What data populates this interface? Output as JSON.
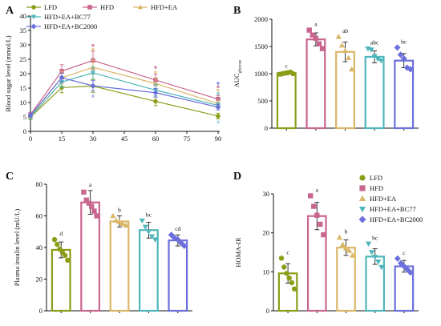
{
  "colors": {
    "LFD": "#8c9d18",
    "HFD": "#c9668f",
    "HFD+EA": "#d9b767",
    "HFD+EA+BC77": "#4fb6bb",
    "HFD+EA+BC2000": "#6b6fdc"
  },
  "chart_data": [
    {
      "panel": "A",
      "type": "line",
      "ylabel": "Blood sugar level (mmol/L)",
      "xlabel": "",
      "x": [
        0,
        15,
        30,
        60,
        90
      ],
      "xticks": [
        "0",
        "15",
        "30",
        "45",
        "60",
        "75",
        "90"
      ],
      "yticks": [
        "0",
        "5",
        "10",
        "15",
        "20",
        "25",
        "30",
        "35",
        "40"
      ],
      "xlim": [
        0,
        90
      ],
      "ylim": [
        0,
        40
      ],
      "legend_position": "top",
      "series": [
        {
          "name": "LFD",
          "marker": "circle",
          "values": [
            4.9,
            15.2,
            15.7,
            10.4,
            5.3
          ],
          "err": [
            0.8,
            1.8,
            2.2,
            1.5,
            1.0
          ]
        },
        {
          "name": "HFD",
          "marker": "square",
          "values": [
            5.8,
            20.9,
            24.6,
            17.8,
            11.2
          ],
          "err": [
            0.8,
            2.2,
            3.2,
            2.0,
            1.2
          ]
        },
        {
          "name": "HFD+EA",
          "marker": "triangle-up",
          "values": [
            5.3,
            18.6,
            22.2,
            16.6,
            9.6
          ],
          "err": [
            0.8,
            2.2,
            2.5,
            2.0,
            1.0
          ]
        },
        {
          "name": "HFD+EA+BC77",
          "marker": "triangle-down",
          "values": [
            5.0,
            17.1,
            20.3,
            14.3,
            9.0
          ],
          "err": [
            0.8,
            2.0,
            2.0,
            2.0,
            1.0
          ]
        },
        {
          "name": "HFD+EA+BC2000",
          "marker": "diamond",
          "values": [
            5.6,
            18.6,
            15.8,
            13.4,
            8.4
          ],
          "err": [
            0.7,
            1.5,
            1.8,
            1.5,
            1.0
          ]
        }
      ],
      "annotations": [
        {
          "x": 30,
          "y": 11.5,
          "text": "#",
          "series": "HFD+EA+BC2000"
        },
        {
          "x": 90,
          "y": 2.5,
          "text": "#",
          "series": "HFD+EA+BC77"
        }
      ],
      "significance_stars": [
        {
          "x": 30,
          "y": 29.8,
          "series": "HFD"
        },
        {
          "x": 30,
          "y": 28.4,
          "series": "HFD+EA"
        },
        {
          "x": 60,
          "y": 22.2,
          "series": "HFD"
        },
        {
          "x": 60,
          "y": 20.5,
          "series": "HFD+EA"
        },
        {
          "x": 90,
          "y": 16.7,
          "series": "HFD+EA+BC2000"
        },
        {
          "x": 90,
          "y": 15.5,
          "series": "HFD"
        },
        {
          "x": 90,
          "y": 14.3,
          "series": "HFD+EA"
        },
        {
          "x": 90,
          "y": 13.1,
          "series": "HFD+EA+BC77"
        }
      ],
      "legend": [
        "LFD",
        "HFD",
        "HFD+EA",
        "HFD+EA+BC77",
        "HFD+EA+BC2000"
      ]
    },
    {
      "panel": "B",
      "type": "bar",
      "ylabel": "AUCglucose",
      "ylabel_main": "AUC",
      "ylabel_sub": "glucose",
      "yticks": [
        "0",
        "500",
        "1000",
        "1500",
        "2000"
      ],
      "ylim": [
        0,
        2000
      ],
      "categories": [
        "LFD",
        "HFD",
        "HFD+EA",
        "HFD+EA+BC77",
        "HFD+EA+BC2000"
      ],
      "values": [
        1010,
        1630,
        1400,
        1310,
        1240
      ],
      "err": [
        30,
        120,
        180,
        110,
        130
      ],
      "letters": [
        "c",
        "a",
        "ab",
        "abc",
        "bc"
      ],
      "points": [
        [
          990,
          1000,
          1010,
          1020,
          1030,
          1000
        ],
        [
          1800,
          1710,
          1650,
          1550,
          1460
        ],
        [
          1680,
          1520,
          1420,
          1290,
          1080
        ],
        [
          1460,
          1440,
          1320,
          1270,
          1240
        ],
        [
          1480,
          1350,
          1280,
          1110,
          1080
        ]
      ]
    },
    {
      "panel": "C",
      "type": "bar",
      "ylabel": "Plasma insulin level (mU/L)",
      "yticks": [
        "0",
        "20",
        "40",
        "60",
        "80"
      ],
      "ylim": [
        0,
        80
      ],
      "categories": [
        "LFD",
        "HFD",
        "HFD+EA",
        "HFD+EA+BC77",
        "HFD+EA+BC2000"
      ],
      "values": [
        38.5,
        68.5,
        56.5,
        51,
        44.5
      ],
      "err": [
        5,
        7.5,
        3.5,
        5,
        3.5
      ],
      "letters": [
        "d",
        "a",
        "b",
        "bc",
        "cd"
      ],
      "points": [
        [
          45,
          42,
          39,
          37,
          35,
          32
        ],
        [
          75,
          70,
          68,
          66,
          63,
          60
        ],
        [
          60,
          57,
          56,
          55,
          54
        ],
        [
          57,
          53,
          50,
          47,
          45
        ],
        [
          48,
          46,
          45,
          43,
          41
        ]
      ]
    },
    {
      "panel": "D",
      "type": "bar",
      "ylabel": "HOMA-IR",
      "yticks": [
        "0",
        "10",
        "20",
        "30"
      ],
      "ylim": [
        0,
        30
      ],
      "categories": [
        "LFD",
        "HFD",
        "HFD+EA",
        "HFD+EA+BC77",
        "HFD+EA+BC2000"
      ],
      "values": [
        9.6,
        24.3,
        16.2,
        13.9,
        11.4
      ],
      "err": [
        2.5,
        3.5,
        2.0,
        2.0,
        1.5
      ],
      "letters": [
        "c",
        "a",
        "b",
        "bc",
        "c"
      ],
      "points": [
        [
          13.5,
          11.2,
          9.6,
          8.4,
          7.2,
          5.6
        ],
        [
          29.5,
          26.8,
          24.5,
          22.2,
          19.5
        ],
        [
          18.8,
          17.0,
          16.0,
          15.4,
          14.2
        ],
        [
          17.2,
          15.0,
          13.8,
          12.6,
          11.2
        ],
        [
          13.4,
          12.2,
          11.4,
          10.6,
          9.8
        ]
      ],
      "legend": [
        "LFD",
        "HFD",
        "HFD+EA",
        "HFD+EA+BC77",
        "HFD+EA+BC2000"
      ]
    }
  ]
}
